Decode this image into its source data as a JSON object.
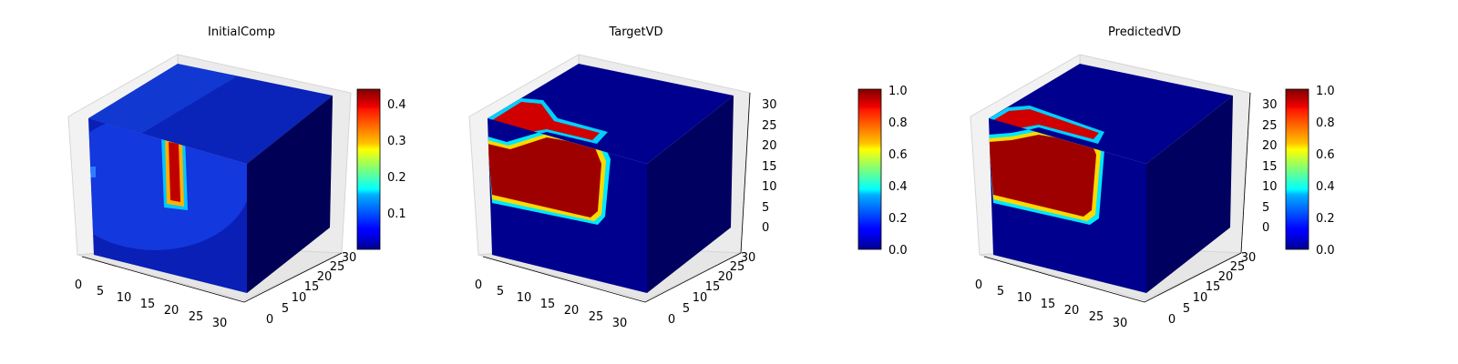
{
  "chart_data": [
    {
      "type": "heatmap",
      "subtype": "3d-voxel",
      "title": "InitialComp",
      "xlim": [
        0,
        32
      ],
      "ylim": [
        0,
        32
      ],
      "zlim": [
        0,
        32
      ],
      "x_ticks": [
        "0",
        "5",
        "10",
        "15",
        "20",
        "25",
        "30"
      ],
      "y_ticks": [
        "0",
        "5",
        "10",
        "15",
        "20",
        "25",
        "30"
      ],
      "z_ticks": [],
      "colormap": "jet",
      "color_range": [
        0.0,
        0.45
      ],
      "colorbar_ticks": [
        "0.1",
        "0.2",
        "0.3",
        "0.4"
      ],
      "colorbar_values": [
        0.1,
        0.2,
        0.3,
        0.4
      ],
      "front_face_feature": {
        "shape": "vertical-bar",
        "x_range": [
          15,
          18
        ],
        "z_range": [
          8,
          22
        ],
        "peak": 0.43,
        "background": 0.07
      }
    },
    {
      "type": "heatmap",
      "subtype": "3d-voxel",
      "title": "TargetVD",
      "xlim": [
        0,
        32
      ],
      "ylim": [
        0,
        32
      ],
      "zlim": [
        0,
        32
      ],
      "x_ticks": [
        "0",
        "5",
        "10",
        "15",
        "20",
        "25",
        "30"
      ],
      "y_ticks": [
        "0",
        "5",
        "10",
        "15",
        "20",
        "25",
        "30"
      ],
      "z_ticks": [
        "0",
        "5",
        "10",
        "15",
        "20",
        "25",
        "30"
      ],
      "colormap": "jet",
      "color_range": [
        0.0,
        1.0
      ],
      "colorbar_ticks": [
        "0.0",
        "0.2",
        "0.4",
        "0.6",
        "0.8",
        "1.0"
      ],
      "colorbar_values": [
        0.0,
        0.2,
        0.4,
        0.6,
        0.8,
        1.0
      ],
      "front_face_feature": {
        "shape": "solid-region",
        "x_range": [
          0,
          22
        ],
        "z_range": [
          9,
          31
        ],
        "peak": 1.0,
        "background": 0.0
      }
    },
    {
      "type": "heatmap",
      "subtype": "3d-voxel",
      "title": "PredictedVD",
      "xlim": [
        0,
        32
      ],
      "ylim": [
        0,
        32
      ],
      "zlim": [
        0,
        32
      ],
      "x_ticks": [
        "0",
        "5",
        "10",
        "15",
        "20",
        "25",
        "30"
      ],
      "y_ticks": [
        "0",
        "5",
        "10",
        "15",
        "20",
        "25",
        "30"
      ],
      "z_ticks": [
        "0",
        "5",
        "10",
        "15",
        "20",
        "25",
        "30"
      ],
      "colormap": "jet",
      "color_range": [
        0.0,
        1.0
      ],
      "colorbar_ticks": [
        "0.0",
        "0.2",
        "0.4",
        "0.6",
        "0.8",
        "1.0"
      ],
      "colorbar_values": [
        0.0,
        0.2,
        0.4,
        0.6,
        0.8,
        1.0
      ],
      "front_face_feature": {
        "shape": "solid-region",
        "x_range": [
          0,
          22
        ],
        "z_range": [
          9,
          30
        ],
        "peak": 1.0,
        "background": 0.0
      }
    }
  ]
}
